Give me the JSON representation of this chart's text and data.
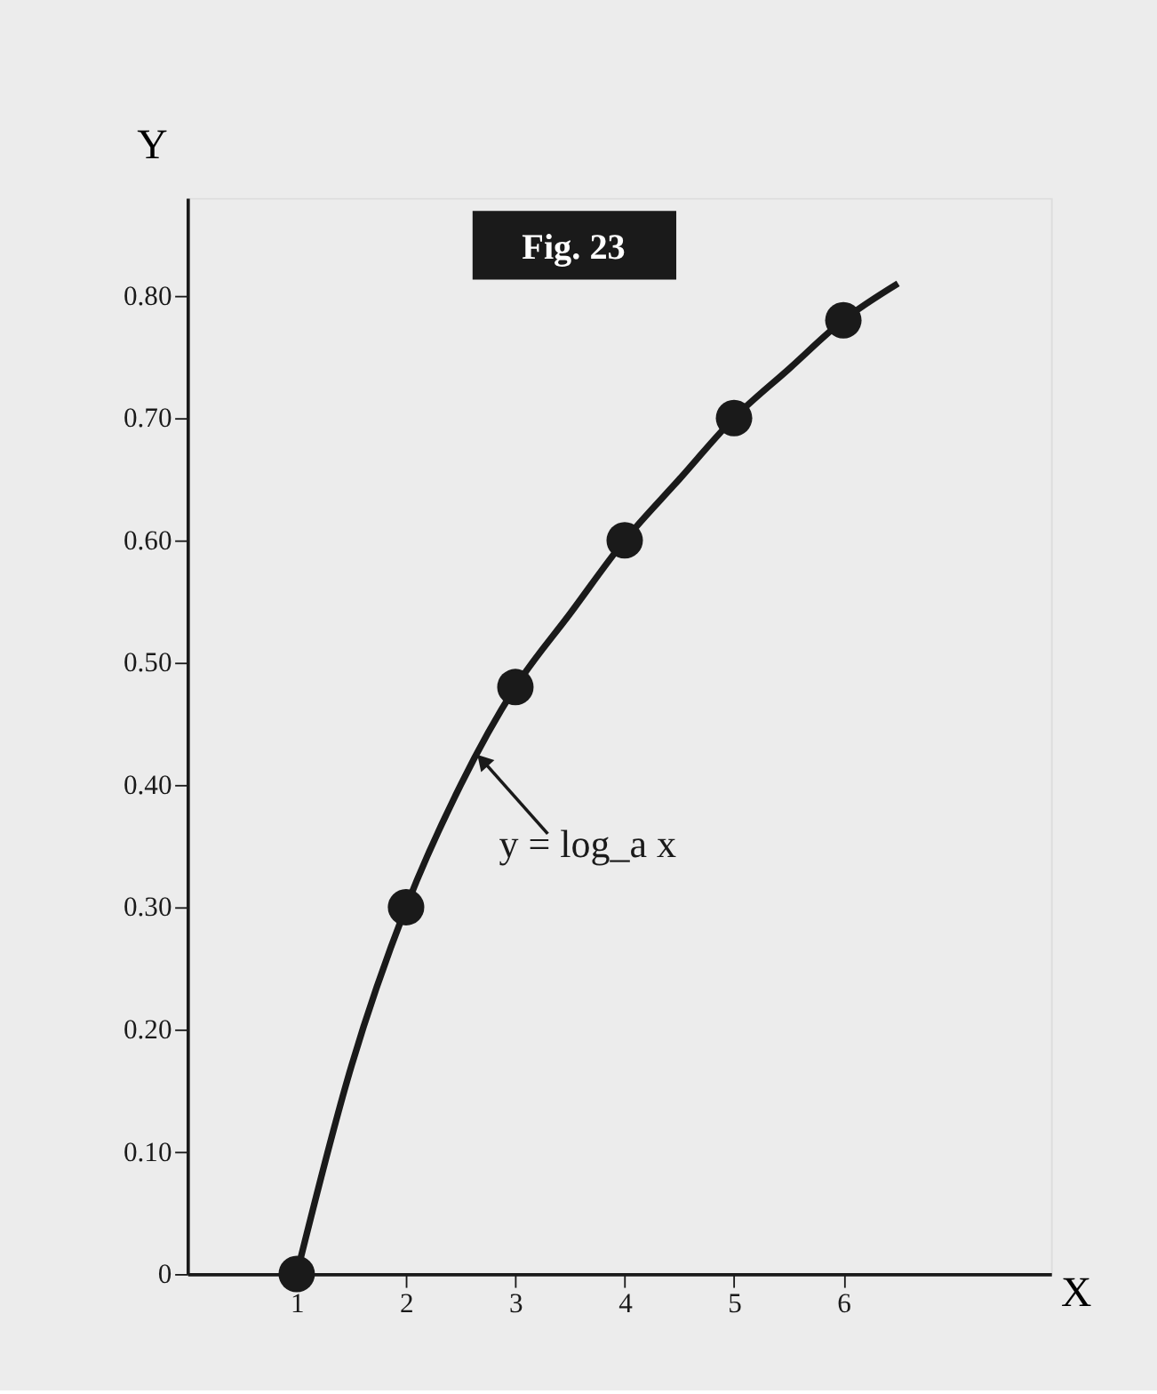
{
  "chart_data": {
    "type": "line",
    "title": "Fig. 23",
    "xlabel": "X",
    "ylabel": "Y",
    "x": [
      1,
      2,
      3,
      4,
      5,
      6
    ],
    "series": [
      {
        "color": "#1a1a1a",
        "marker": "none",
        "x": [
          1,
          1.5,
          2,
          2.5,
          3,
          3.5,
          4,
          4.5,
          5,
          5.5,
          6,
          6.5
        ],
        "values": [
          0,
          0.17,
          0.3,
          0.4,
          0.48,
          0.54,
          0.6,
          0.65,
          0.7,
          0.74,
          0.78,
          0.81
        ]
      },
      {
        "type": "scatter",
        "color": "#1a1a1a",
        "marker": "circle",
        "values": [
          0,
          0.3,
          0.48,
          0.6,
          0.7,
          0.78
        ]
      }
    ],
    "annotations": [
      {
        "text": "y = log_a x",
        "x": 2.7,
        "y": 0.42
      }
    ],
    "xlim": [
      0,
      7.9
    ],
    "ylim": [
      0,
      0.88
    ],
    "xticks": [
      1,
      2,
      3,
      4,
      5,
      6
    ],
    "yticks": [
      0,
      {
        "value": 0.1,
        "label": "0.10"
      },
      {
        "value": 0.2,
        "label": "0.20"
      },
      {
        "value": 0.3,
        "label": "0.30"
      },
      {
        "value": 0.4,
        "label": "0.40"
      },
      {
        "value": 0.5,
        "label": "0.50"
      },
      {
        "value": 0.6,
        "label": "0.60"
      },
      {
        "value": 0.7,
        "label": "0.70"
      },
      {
        "value": 0.8,
        "label": "0.80"
      }
    ],
    "grid": false
  }
}
